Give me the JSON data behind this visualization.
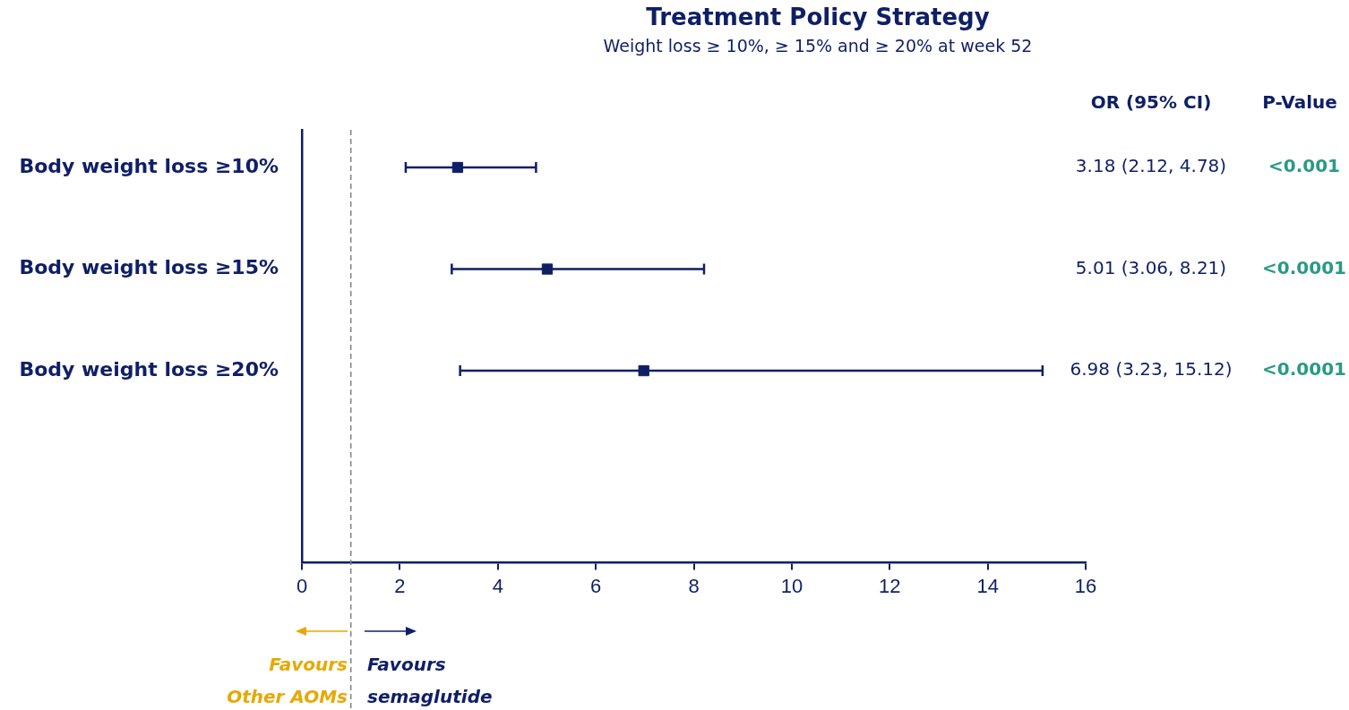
{
  "chart_data": {
    "type": "scatter",
    "title": "Treatment Policy Strategy",
    "subtitle": "Weight loss ≥ 10%, ≥ 15% and ≥ 20% at week 52",
    "orientation": "horizontal",
    "marker": "square",
    "color": "#0f1f66",
    "categories": [
      "Body weight loss ≥10%",
      "Body weight loss ≥15%",
      "Body weight loss ≥20%"
    ],
    "values": [
      3.18,
      5.01,
      6.98
    ],
    "errors": [
      [
        2.12,
        4.78
      ],
      [
        3.06,
        8.21
      ],
      [
        3.23,
        15.12
      ]
    ],
    "value_labels": [
      "3.18 (2.12, 4.78)",
      "5.01 (3.06, 8.21)",
      "6.98 (3.23, 15.12)"
    ],
    "xlim": [
      0,
      16
    ],
    "xticks": [
      0,
      2,
      4,
      6,
      8,
      10,
      12,
      14,
      16
    ],
    "ref_lines": [
      {
        "axis": "x",
        "value": 1,
        "line_style": "dashed",
        "color": "#808080"
      }
    ],
    "annotations": [
      "OR (95% CI)",
      "P-Value",
      "<0.001",
      "<0.0001",
      "<0.0001",
      "Favours Other AOMs",
      "Favours semaglutide"
    ]
  }
}
